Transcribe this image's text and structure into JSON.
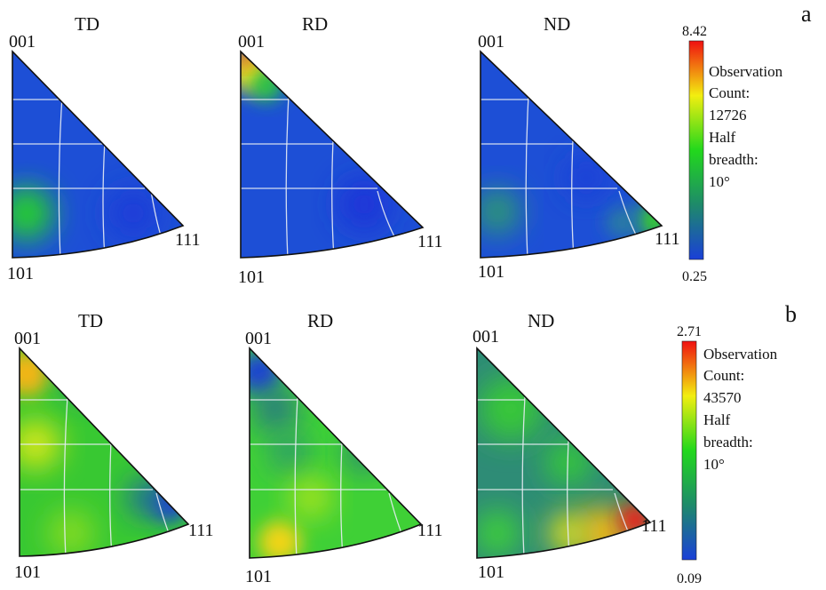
{
  "rows": [
    {
      "letter": "a",
      "triangles": [
        {
          "title": "TD",
          "pole_001": "001",
          "pole_101": "101",
          "pole_111": "111"
        },
        {
          "title": "RD",
          "pole_001": "001",
          "pole_101": "101",
          "pole_111": "111"
        },
        {
          "title": "ND",
          "pole_001": "001",
          "pole_101": "101",
          "pole_111": "111"
        }
      ],
      "colorbar": {
        "max": "8.42",
        "min": "0.25",
        "legend": [
          "Observation",
          "Count:",
          "12726",
          "Half",
          "breadth:",
          "10°"
        ]
      }
    },
    {
      "letter": "b",
      "triangles": [
        {
          "title": "TD",
          "pole_001": "001",
          "pole_101": "101",
          "pole_111": "111"
        },
        {
          "title": "RD",
          "pole_001": "001",
          "pole_101": "101",
          "pole_111": "111"
        },
        {
          "title": "ND",
          "pole_001": "001",
          "pole_101": "101",
          "pole_111": "111"
        }
      ],
      "colorbar": {
        "max": "2.71",
        "min": "0.09",
        "legend": [
          "Observation",
          "Count:",
          "43570",
          "Half",
          "breadth:",
          "10°"
        ]
      }
    }
  ],
  "colors": {
    "scale_low": "#1a3fd8",
    "scale_mid_low": "#1e8a6a",
    "scale_mid": "#22d81c",
    "scale_mid_high": "#f2ee10",
    "scale_high": "#f01010"
  }
}
